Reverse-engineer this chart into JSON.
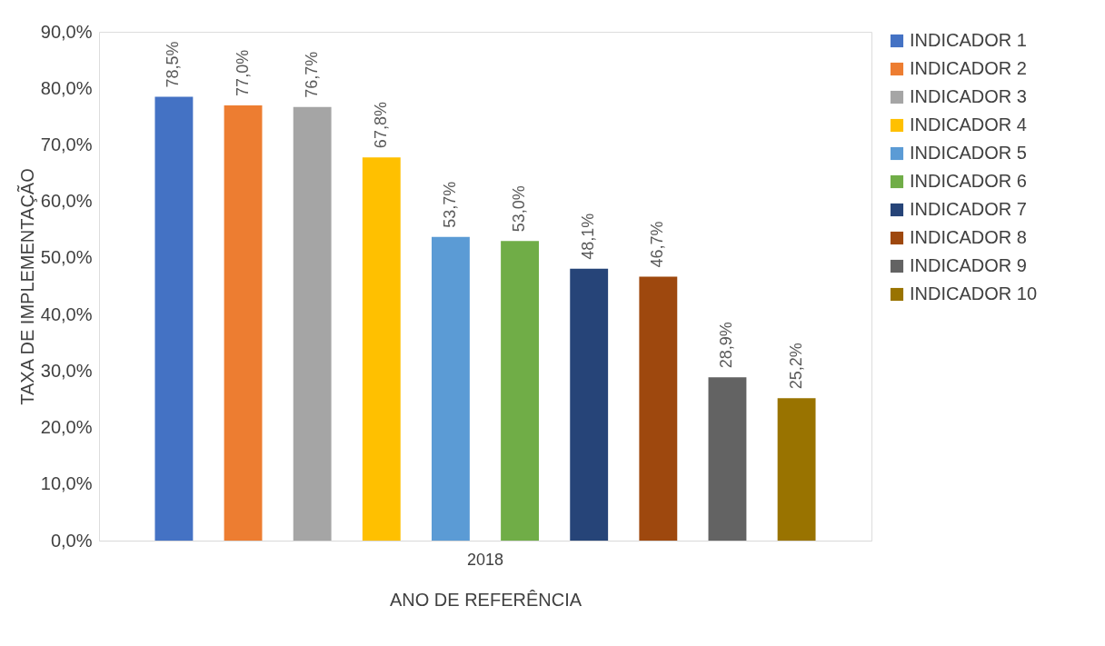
{
  "chart_data": {
    "type": "bar",
    "xlabel": "ANO DE REFERÊNCIA",
    "ylabel": "TAXA DE IMPLEMENTAÇÃO",
    "categories": [
      "2018"
    ],
    "series": [
      {
        "name": "INDICADOR 1",
        "color": "#4472c4",
        "values": [
          78.5
        ],
        "value_labels": [
          "78,5%"
        ]
      },
      {
        "name": "INDICADOR 2",
        "color": "#ed7d31",
        "values": [
          77.0
        ],
        "value_labels": [
          "77,0%"
        ]
      },
      {
        "name": "INDICADOR 3",
        "color": "#a5a5a5",
        "values": [
          76.7
        ],
        "value_labels": [
          "76,7%"
        ]
      },
      {
        "name": "INDICADOR 4",
        "color": "#ffc000",
        "values": [
          67.8
        ],
        "value_labels": [
          "67,8%"
        ]
      },
      {
        "name": "INDICADOR 5",
        "color": "#5b9bd5",
        "values": [
          53.7
        ],
        "value_labels": [
          "53,7%"
        ]
      },
      {
        "name": "INDICADOR 6",
        "color": "#70ad47",
        "values": [
          53.0
        ],
        "value_labels": [
          "53,0%"
        ]
      },
      {
        "name": "INDICADOR 7",
        "color": "#264478",
        "values": [
          48.1
        ],
        "value_labels": [
          "48,1%"
        ]
      },
      {
        "name": "INDICADOR 8",
        "color": "#9e480e",
        "values": [
          46.7
        ],
        "value_labels": [
          "46,7%"
        ]
      },
      {
        "name": "INDICADOR 9",
        "color": "#636363",
        "values": [
          28.9
        ],
        "value_labels": [
          "28,9%"
        ]
      },
      {
        "name": "INDICADOR 10",
        "color": "#997300",
        "values": [
          25.2
        ],
        "value_labels": [
          "25,2%"
        ]
      }
    ],
    "ylim": [
      0,
      90
    ],
    "yticks": [
      {
        "value": 0,
        "label": "0,0%"
      },
      {
        "value": 10,
        "label": "10,0%"
      },
      {
        "value": 20,
        "label": "20,0%"
      },
      {
        "value": 30,
        "label": "30,0%"
      },
      {
        "value": 40,
        "label": "40,0%"
      },
      {
        "value": 50,
        "label": "50,0%"
      },
      {
        "value": 60,
        "label": "60,0%"
      },
      {
        "value": 70,
        "label": "70,0%"
      },
      {
        "value": 80,
        "label": "80,0%"
      },
      {
        "value": 90,
        "label": "90,0%"
      }
    ],
    "grid": false,
    "legend": "right"
  }
}
